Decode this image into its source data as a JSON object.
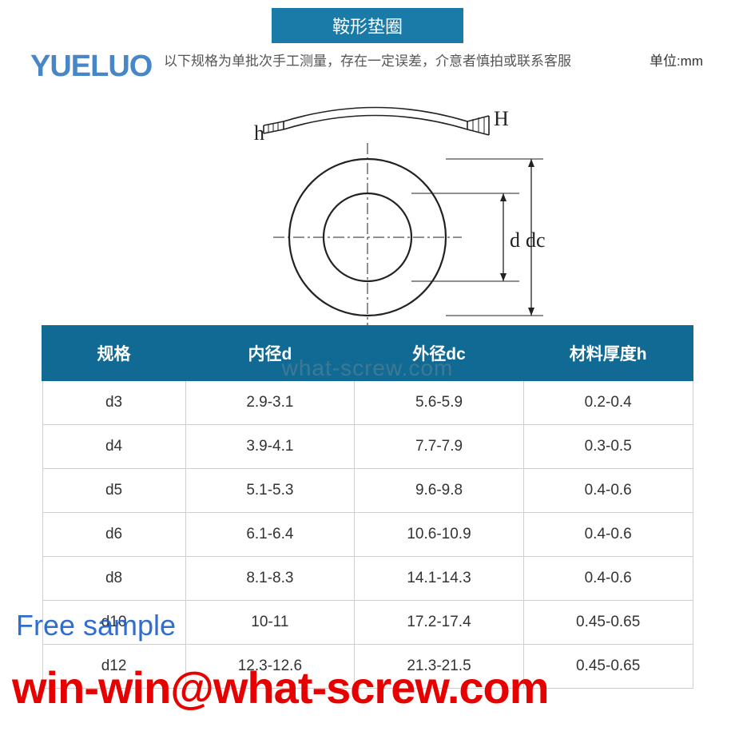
{
  "banner": {
    "title": "鞍形垫圈",
    "bg_color": "#1a7aa8"
  },
  "logo_text": "YUELUO",
  "note": "以下规格为单批次手工测量，存在一定误差，介意者慎拍或联系客服",
  "unit_label": "单位:mm",
  "diagram": {
    "labels": {
      "h": "h",
      "H": "H",
      "d": "d",
      "dc": "dc"
    },
    "line_color": "#222222",
    "centerline_color": "#222222"
  },
  "watermark_mid": "what-screw.com",
  "table": {
    "header_bg": "#106a94",
    "border_color": "#cfcfcf",
    "columns": [
      "规格",
      "内径d",
      "外径dc",
      "材料厚度h"
    ],
    "col_widths": [
      "22%",
      "26%",
      "26%",
      "26%"
    ],
    "rows": [
      [
        "d3",
        "2.9-3.1",
        "5.6-5.9",
        "0.2-0.4"
      ],
      [
        "d4",
        "3.9-4.1",
        "7.7-7.9",
        "0.3-0.5"
      ],
      [
        "d5",
        "5.1-5.3",
        "9.6-9.8",
        "0.4-0.6"
      ],
      [
        "d6",
        "6.1-6.4",
        "10.6-10.9",
        "0.4-0.6"
      ],
      [
        "d8",
        "8.1-8.3",
        "14.1-14.3",
        "0.4-0.6"
      ],
      [
        "d10",
        "10-11",
        "17.2-17.4",
        "0.45-0.65"
      ],
      [
        "d12",
        "12.3-12.6",
        "21.3-21.5",
        "0.45-0.65"
      ]
    ]
  },
  "overlays": {
    "free_sample": "Free sample",
    "email": "win-win@what-screw.com"
  },
  "colors": {
    "logo": "#0a5fb5",
    "free_sample": "#1a5fc9",
    "email": "#e60000",
    "body_bg": "#ffffff",
    "text": "#333333"
  }
}
